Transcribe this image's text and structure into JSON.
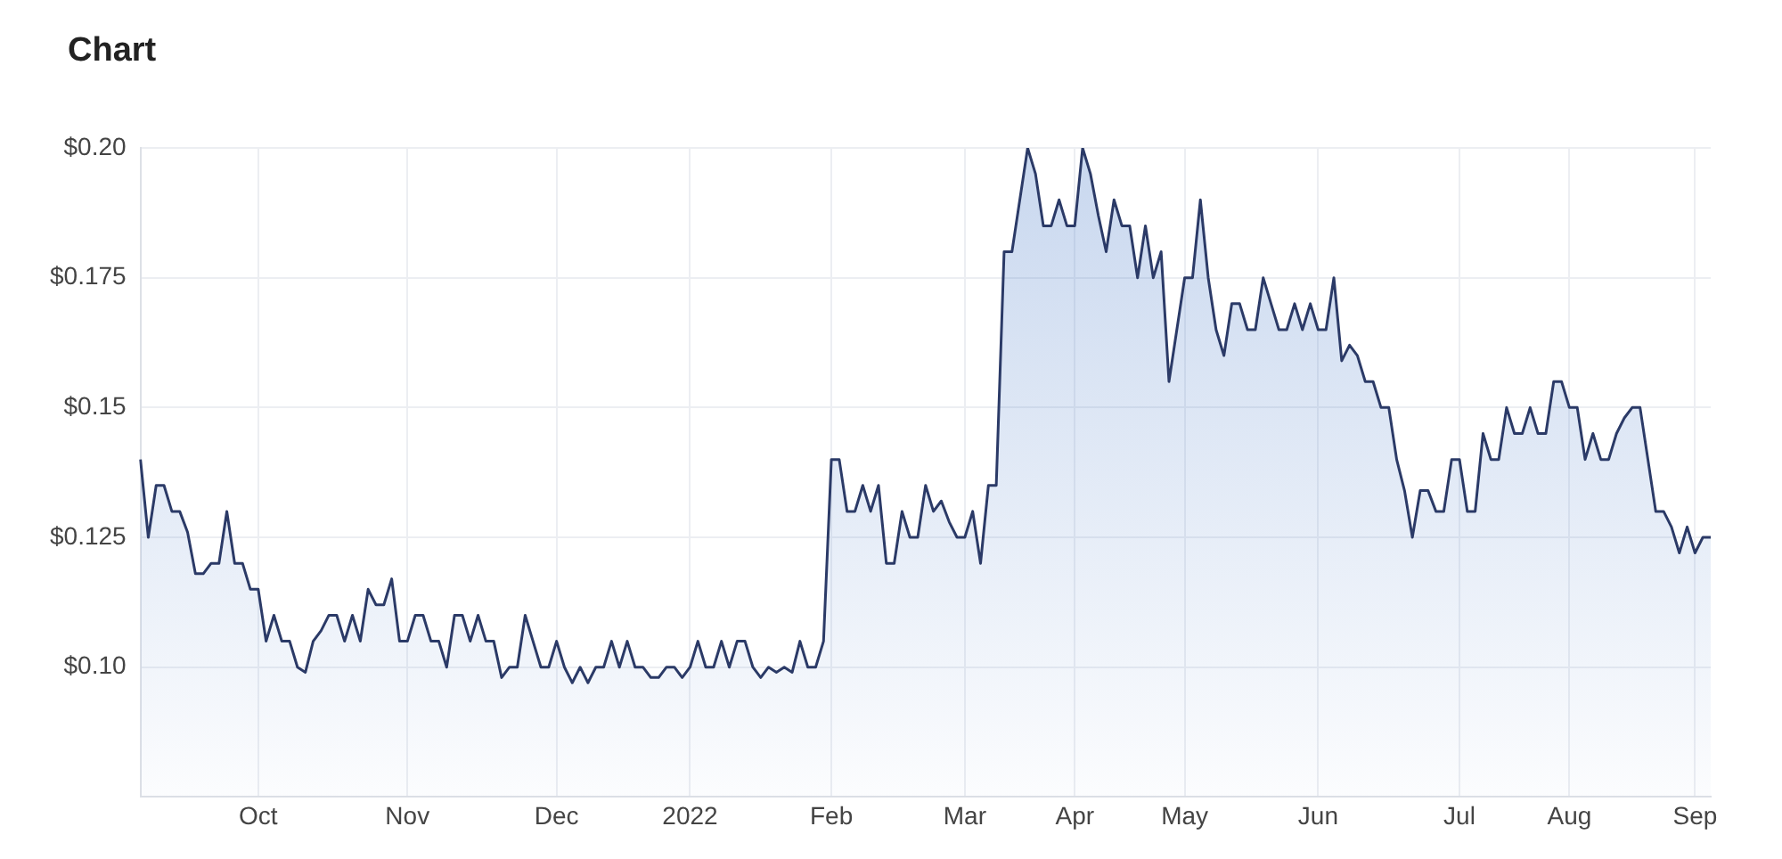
{
  "chart_data": {
    "type": "area",
    "title": "Chart",
    "legend": false,
    "grid": true,
    "marker": "none",
    "categories": [
      null,
      null,
      null,
      null,
      null,
      null,
      null,
      null,
      null,
      null,
      null,
      null,
      null,
      null,
      null,
      "Oct",
      null,
      null,
      null,
      null,
      null,
      null,
      null,
      null,
      null,
      null,
      null,
      null,
      null,
      null,
      null,
      null,
      null,
      null,
      "Nov",
      null,
      null,
      null,
      null,
      null,
      null,
      null,
      null,
      null,
      null,
      null,
      null,
      null,
      null,
      null,
      null,
      null,
      null,
      "Dec",
      null,
      null,
      null,
      null,
      null,
      null,
      null,
      null,
      null,
      null,
      null,
      null,
      null,
      null,
      null,
      null,
      "2022",
      null,
      null,
      null,
      null,
      null,
      null,
      null,
      null,
      null,
      null,
      null,
      null,
      null,
      null,
      null,
      null,
      null,
      "Feb",
      null,
      null,
      null,
      null,
      null,
      null,
      null,
      null,
      null,
      null,
      null,
      null,
      null,
      null,
      null,
      null,
      "Mar",
      null,
      null,
      null,
      null,
      null,
      null,
      null,
      null,
      null,
      null,
      null,
      null,
      null,
      "Apr",
      null,
      null,
      null,
      null,
      null,
      null,
      null,
      null,
      null,
      null,
      null,
      null,
      null,
      "May",
      null,
      null,
      null,
      null,
      null,
      null,
      null,
      null,
      null,
      null,
      null,
      null,
      null,
      null,
      null,
      null,
      "Jun",
      null,
      null,
      null,
      null,
      null,
      null,
      null,
      null,
      null,
      null,
      null,
      null,
      null,
      null,
      null,
      null,
      null,
      "Jul",
      null,
      null,
      null,
      null,
      null,
      null,
      null,
      null,
      null,
      null,
      null,
      null,
      null,
      "Aug",
      null,
      null,
      null,
      null,
      null,
      null,
      null,
      null,
      null,
      null,
      null,
      null,
      null,
      null,
      null,
      "Sep",
      null,
      null
    ],
    "ylim": [
      0.075,
      0.2
    ],
    "yticks": [
      {
        "value": 0.1,
        "label": "$0.10"
      },
      {
        "value": 0.125,
        "label": "$0.125"
      },
      {
        "value": 0.15,
        "label": "$0.15"
      },
      {
        "value": 0.175,
        "label": "$0.175"
      },
      {
        "value": 0.2,
        "label": "$0.20"
      }
    ],
    "series": [
      {
        "color": "#2b3a67",
        "values": [
          0.14,
          0.125,
          0.135,
          0.135,
          0.13,
          0.13,
          0.126,
          0.118,
          0.118,
          0.12,
          0.12,
          0.13,
          0.12,
          0.12,
          0.115,
          0.115,
          0.105,
          0.11,
          0.105,
          0.105,
          0.1,
          0.099,
          0.105,
          0.107,
          0.11,
          0.11,
          0.105,
          0.11,
          0.105,
          0.115,
          0.112,
          0.112,
          0.117,
          0.105,
          0.105,
          0.11,
          0.11,
          0.105,
          0.105,
          0.1,
          0.11,
          0.11,
          0.105,
          0.11,
          0.105,
          0.105,
          0.098,
          0.1,
          0.1,
          0.11,
          0.105,
          0.1,
          0.1,
          0.105,
          0.1,
          0.097,
          0.1,
          0.097,
          0.1,
          0.1,
          0.105,
          0.1,
          0.105,
          0.1,
          0.1,
          0.098,
          0.098,
          0.1,
          0.1,
          0.098,
          0.1,
          0.105,
          0.1,
          0.1,
          0.105,
          0.1,
          0.105,
          0.105,
          0.1,
          0.098,
          0.1,
          0.099,
          0.1,
          0.099,
          0.105,
          0.1,
          0.1,
          0.105,
          0.14,
          0.14,
          0.13,
          0.13,
          0.135,
          0.13,
          0.135,
          0.12,
          0.12,
          0.13,
          0.125,
          0.125,
          0.135,
          0.13,
          0.132,
          0.128,
          0.125,
          0.125,
          0.13,
          0.12,
          0.135,
          0.135,
          0.18,
          0.18,
          0.19,
          0.2,
          0.195,
          0.185,
          0.185,
          0.19,
          0.185,
          0.185,
          0.2,
          0.195,
          0.187,
          0.18,
          0.19,
          0.185,
          0.185,
          0.175,
          0.185,
          0.175,
          0.18,
          0.155,
          0.165,
          0.175,
          0.175,
          0.19,
          0.175,
          0.165,
          0.16,
          0.17,
          0.17,
          0.165,
          0.165,
          0.175,
          0.17,
          0.165,
          0.165,
          0.17,
          0.165,
          0.17,
          0.165,
          0.165,
          0.175,
          0.159,
          0.162,
          0.16,
          0.155,
          0.155,
          0.15,
          0.15,
          0.14,
          0.134,
          0.125,
          0.134,
          0.134,
          0.13,
          0.13,
          0.14,
          0.14,
          0.13,
          0.13,
          0.145,
          0.14,
          0.14,
          0.15,
          0.145,
          0.145,
          0.15,
          0.145,
          0.145,
          0.155,
          0.155,
          0.15,
          0.15,
          0.14,
          0.145,
          0.14,
          0.14,
          0.145,
          0.148,
          0.15,
          0.15,
          0.14,
          0.13,
          0.13,
          0.127,
          0.122,
          0.127,
          0.122,
          0.125,
          0.125
        ]
      }
    ]
  }
}
